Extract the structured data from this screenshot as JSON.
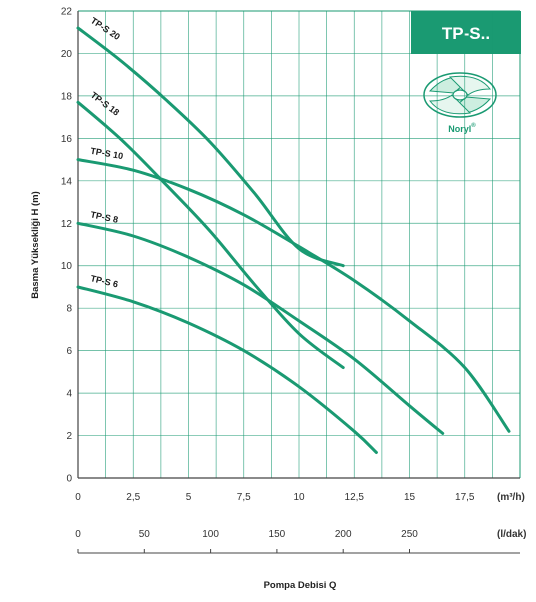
{
  "badge": {
    "title": "TP-S..",
    "color": "#1a9a72"
  },
  "material": {
    "name": "Noryl",
    "mark": "®",
    "icon": "impeller-icon"
  },
  "colors": {
    "curve": "#1a9a72",
    "grid": "#1a9a72",
    "axis": "#444444"
  },
  "chart_data": {
    "type": "line",
    "ylabel": "Basma Yüksekliği H (m)",
    "xlabel": "Pompa Debisi Q",
    "x_unit": "(m³/h)",
    "x2_unit": "(l/dak)",
    "xlim": [
      0,
      20
    ],
    "ylim": [
      0,
      22
    ],
    "x_ticks": [
      "0",
      "2,5",
      "5",
      "7,5",
      "10",
      "12,5",
      "15",
      "17,5"
    ],
    "x_tick_values": [
      0,
      2.5,
      5,
      7.5,
      10,
      12.5,
      15,
      17.5
    ],
    "x2_ticks": [
      "0",
      "50",
      "100",
      "150",
      "200",
      "250"
    ],
    "x2_tick_values": [
      0,
      50,
      100,
      150,
      200,
      250
    ],
    "y_ticks": [
      "0",
      "2",
      "4",
      "6",
      "8",
      "10",
      "12",
      "14",
      "16",
      "18",
      "20",
      "22"
    ],
    "y_tick_values": [
      0,
      2,
      4,
      6,
      8,
      10,
      12,
      14,
      16,
      18,
      20,
      22
    ],
    "grid": true,
    "series": [
      {
        "name": "TP-S 20",
        "x": [
          0,
          2,
          4,
          6,
          8,
          10,
          12
        ],
        "y": [
          21.2,
          19.6,
          17.8,
          15.8,
          13.4,
          10.8,
          10
        ]
      },
      {
        "name": "TP-S 18",
        "x": [
          0,
          2,
          4,
          6,
          8,
          10,
          12
        ],
        "y": [
          17.7,
          15.9,
          13.8,
          11.6,
          9.1,
          6.8,
          5.2
        ]
      },
      {
        "name": "TP-S 10",
        "x": [
          0,
          2.5,
          5,
          7.5,
          10,
          12.5,
          15,
          17.5,
          19.5
        ],
        "y": [
          15,
          14.5,
          13.6,
          12.4,
          10.9,
          9.3,
          7.4,
          5.2,
          2.2
        ]
      },
      {
        "name": "TP-S 8",
        "x": [
          0,
          2.5,
          5,
          7.5,
          10,
          12.5,
          15,
          16.5
        ],
        "y": [
          12,
          11.4,
          10.4,
          9.1,
          7.4,
          5.6,
          3.4,
          2.1
        ]
      },
      {
        "name": "TP-S 6",
        "x": [
          0,
          2.5,
          5,
          7.5,
          10,
          12.5,
          13.5
        ],
        "y": [
          9,
          8.3,
          7.3,
          6,
          4.3,
          2.2,
          1.2
        ]
      }
    ]
  }
}
